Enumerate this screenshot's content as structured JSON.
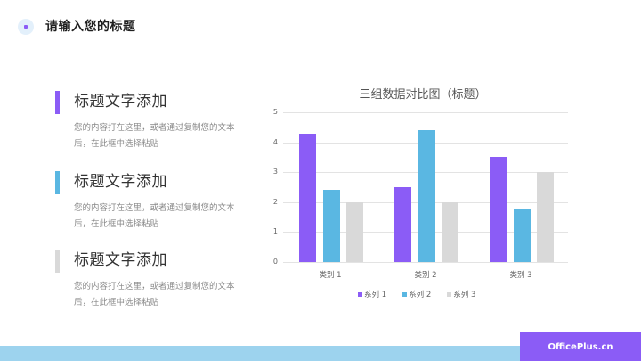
{
  "header": {
    "title": "请输入您的标题",
    "icon": "circle-dot-icon"
  },
  "blocks": [
    {
      "title": "标题文字添加",
      "desc": "您的内容打在这里，或者通过复制您的文本后，在此框中选择粘贴",
      "accent": "#8b5cf6"
    },
    {
      "title": "标题文字添加",
      "desc": "您的内容打在这里，或者通过复制您的文本后，在此框中选择粘贴",
      "accent": "#5ab7e2"
    },
    {
      "title": "标题文字添加",
      "desc": "您的内容打在这里，或者通过复制您的文本后，在此框中选择粘贴",
      "accent": "#d9d9d9"
    }
  ],
  "footer": {
    "brand": "OfficePlus.cn",
    "brand_color": "#8b5cf6",
    "band_color": "#9dd3ee"
  },
  "chart_data": {
    "type": "bar",
    "title": "三组数据对比图（标题）",
    "xlabel": "",
    "ylabel": "",
    "categories": [
      "类别 1",
      "类别 2",
      "类别 3"
    ],
    "series": [
      {
        "name": "系列 1",
        "values": [
          4.3,
          2.5,
          3.5
        ],
        "color": "#8b5cf6"
      },
      {
        "name": "系列 2",
        "values": [
          2.4,
          4.4,
          1.8
        ],
        "color": "#5ab7e2"
      },
      {
        "name": "系列 3",
        "values": [
          2,
          2,
          3
        ],
        "color": "#d9d9d9"
      }
    ],
    "ylim": [
      0,
      5
    ],
    "yticks": [
      "0",
      "1",
      "2",
      "3",
      "4",
      "5"
    ],
    "grid": true,
    "legend_position": "bottom"
  }
}
